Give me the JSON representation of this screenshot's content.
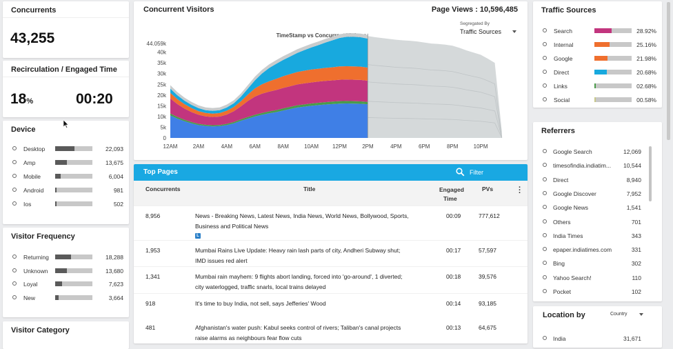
{
  "concurrents": {
    "title": "Concurrents",
    "value": "43,255"
  },
  "recirculation": {
    "title": "Recirculation / Engaged Time",
    "percent": "18",
    "percent_unit": "%",
    "time": "00:20"
  },
  "device": {
    "title": "Device",
    "items": [
      {
        "label": "Desktop",
        "value": "22,093",
        "share": 0.51
      },
      {
        "label": "Amp",
        "value": "13,675",
        "share": 0.32
      },
      {
        "label": "Mobile",
        "value": "6,004",
        "share": 0.14
      },
      {
        "label": "Android",
        "value": "981",
        "share": 0.03
      },
      {
        "label": "Ios",
        "value": "502",
        "share": 0.02
      }
    ]
  },
  "visitor_frequency": {
    "title": "Visitor Frequency",
    "items": [
      {
        "label": "Returning",
        "value": "18,288",
        "share": 0.42
      },
      {
        "label": "Unknown",
        "value": "13,680",
        "share": 0.32
      },
      {
        "label": "Loyal",
        "value": "7,623",
        "share": 0.18
      },
      {
        "label": "New",
        "value": "3,664",
        "share": 0.09
      }
    ]
  },
  "visitor_category": {
    "title": "Visitor Category"
  },
  "concurrent_visitors": {
    "title": "Concurrent Visitors",
    "page_views_label": "Page Views : 10,596,485",
    "segregated_by_label": "Segregated By",
    "segregated_by_value": "Traffic Sources"
  },
  "chart_data": {
    "type": "area",
    "title": "TimeStamp vs Concurrent Visitors",
    "x_ticks": [
      "12AM",
      "2AM",
      "4AM",
      "6AM",
      "8AM",
      "10AM",
      "12PM",
      "2PM",
      "4PM",
      "6PM",
      "8PM",
      "10PM"
    ],
    "y_ticks": [
      "0",
      "5k",
      "10k",
      "15k",
      "20k",
      "25k",
      "30k",
      "35k",
      "40k",
      "44.059k"
    ],
    "ylim": [
      0,
      44059
    ],
    "x_hours": [
      0,
      0.5,
      1,
      1.5,
      2,
      2.5,
      3,
      3.5,
      4,
      4.5,
      5,
      5.5,
      6,
      6.5,
      7,
      7.5,
      8,
      8.5,
      9,
      9.5,
      10,
      10.5,
      11,
      11.5,
      12,
      12.5,
      13,
      13.5,
      14
    ],
    "series": [
      {
        "name": "Search",
        "color": "#3f7fe6",
        "values": [
          10500,
          9000,
          7800,
          6800,
          6000,
          5600,
          5400,
          5500,
          6000,
          6800,
          8000,
          9000,
          10000,
          10800,
          11500,
          12000,
          12800,
          13500,
          14200,
          14600,
          15000,
          15300,
          15600,
          15800,
          16000,
          16100,
          16000,
          15900,
          15700
        ]
      },
      {
        "name": "Internal",
        "color": "#4a9b4a",
        "values": [
          900,
          800,
          700,
          650,
          600,
          550,
          550,
          550,
          600,
          650,
          700,
          750,
          800,
          850,
          900,
          950,
          1000,
          1000,
          1050,
          1050,
          1100,
          1100,
          1100,
          1150,
          1150,
          1150,
          1150,
          1150,
          1100
        ]
      },
      {
        "name": "Google",
        "color": "#c2357e",
        "values": [
          7000,
          6000,
          5200,
          4600,
          4200,
          3900,
          3800,
          3900,
          4300,
          5000,
          6000,
          7500,
          8500,
          9000,
          9200,
          9400,
          9500,
          9600,
          9700,
          9800,
          9800,
          9900,
          9900,
          9900,
          10000,
          10000,
          10000,
          10000,
          9900
        ]
      },
      {
        "name": "Direct",
        "color": "#ef6f2e",
        "values": [
          2600,
          2300,
          2100,
          1900,
          1700,
          1600,
          1600,
          1650,
          1800,
          2000,
          2400,
          3000,
          3800,
          4400,
          4800,
          5200,
          5500,
          5700,
          5800,
          5900,
          6000,
          6000,
          6100,
          6100,
          6200,
          6200,
          6200,
          6200,
          6100
        ]
      },
      {
        "name": "Links",
        "color": "#18a9de",
        "values": [
          2000,
          1800,
          1600,
          1500,
          1400,
          1300,
          1300,
          1350,
          1500,
          1700,
          2100,
          2800,
          3800,
          5000,
          6200,
          7000,
          7600,
          8200,
          8900,
          9600,
          10300,
          11000,
          11800,
          12600,
          13300,
          13700,
          13800,
          13700,
          13500
        ]
      },
      {
        "name": "Social",
        "color": "#c9cccd",
        "values": [
          1600,
          1500,
          1400,
          1350,
          1300,
          1300,
          1300,
          1300,
          1350,
          1400,
          1500,
          1600,
          1700,
          1700,
          1700,
          1700,
          1700,
          1700,
          1700,
          1700,
          1700,
          1700,
          1700,
          1700,
          1700,
          1700,
          1700,
          1700,
          1700
        ]
      }
    ],
    "projection": {
      "color": "#d5d9da",
      "x_hours": [
        14,
        14.5,
        15,
        15.5,
        16,
        16.5,
        17,
        17.5,
        18,
        18.5,
        19,
        19.5,
        20,
        20.5,
        21,
        21.5,
        22,
        22.5,
        23,
        23.5
      ],
      "values": [
        47500,
        47000,
        46600,
        46200,
        45800,
        45500,
        45300,
        45000,
        44500,
        44000,
        43800,
        43500,
        43000,
        42000,
        40800,
        39800,
        38800,
        37000,
        35000,
        3000
      ]
    }
  },
  "top_pages": {
    "title": "Top Pages",
    "filter_label": "Filter",
    "columns": {
      "concurrents": "Concurrents",
      "title": "Title",
      "engaged_line1": "Engaged",
      "engaged_line2": "Time",
      "pvs": "PVs"
    },
    "rows": [
      {
        "concurrents": "8,956",
        "title_line1": "News - Breaking News, Latest News, India News, World News, Bollywood, Sports,",
        "title_line2": "Business and Political News",
        "badge": "L",
        "engaged": "00:09",
        "pvs": "777,612"
      },
      {
        "concurrents": "1,953",
        "title_line1": "Mumbai Rains Live Update: Heavy rain lash parts of city, Andheri Subway shut;",
        "title_line2": "IMD issues red alert",
        "engaged": "00:17",
        "pvs": "57,597"
      },
      {
        "concurrents": "1,341",
        "title_line1": "Mumbai rain mayhem: 9 flights abort landing, forced into 'go-around', 1 diverted;",
        "title_line2": "city waterlogged, traffic snarls, local trains delayed",
        "engaged": "00:18",
        "pvs": "39,576"
      },
      {
        "concurrents": "918",
        "title_line1": "It's time to buy India, not sell, says Jefferies' Wood",
        "title_line2": "",
        "engaged": "00:14",
        "pvs": "93,185"
      },
      {
        "concurrents": "481",
        "title_line1": "Afghanistan's water push: Kabul seeks control of rivers; Taliban's canal projects",
        "title_line2": "raise alarms as neighbours fear flow cuts",
        "engaged": "00:13",
        "pvs": "64,675"
      }
    ]
  },
  "traffic_sources": {
    "title": "Traffic Sources",
    "items": [
      {
        "label": "Search",
        "value": "28.92%",
        "share": 0.2892,
        "color": "#c2357e"
      },
      {
        "label": "Internal",
        "value": "25.16%",
        "share": 0.2516,
        "color": "#ef6f2e"
      },
      {
        "label": "Google",
        "value": "21.98%",
        "share": 0.2198,
        "color": "#ef6f2e"
      },
      {
        "label": "Direct",
        "value": "20.68%",
        "share": 0.2068,
        "color": "#18a9de"
      },
      {
        "label": "Links",
        "value": "02.68%",
        "share": 0.0268,
        "color": "#4a9b4a"
      },
      {
        "label": "Social",
        "value": "00.58%",
        "share": 0.0058,
        "color": "#c8c88a"
      }
    ]
  },
  "referrers": {
    "title": "Referrers",
    "items": [
      {
        "label": "Google Search",
        "value": "12,069"
      },
      {
        "label": "timesofindia.indiatim...",
        "value": "10,544"
      },
      {
        "label": "Direct",
        "value": "8,940"
      },
      {
        "label": "Google Discover",
        "value": "7,952"
      },
      {
        "label": "Google News",
        "value": "1,541"
      },
      {
        "label": "Others",
        "value": "701"
      },
      {
        "label": "India Times",
        "value": "343"
      },
      {
        "label": "epaper.indiatimes.com",
        "value": "331"
      },
      {
        "label": "Bing",
        "value": "302"
      },
      {
        "label": "Yahoo Search!",
        "value": "110"
      },
      {
        "label": "Pocket",
        "value": "102"
      }
    ]
  },
  "location": {
    "title": "Location by",
    "select_value": "Country",
    "items": [
      {
        "label": "India",
        "value": "31,671"
      }
    ]
  }
}
